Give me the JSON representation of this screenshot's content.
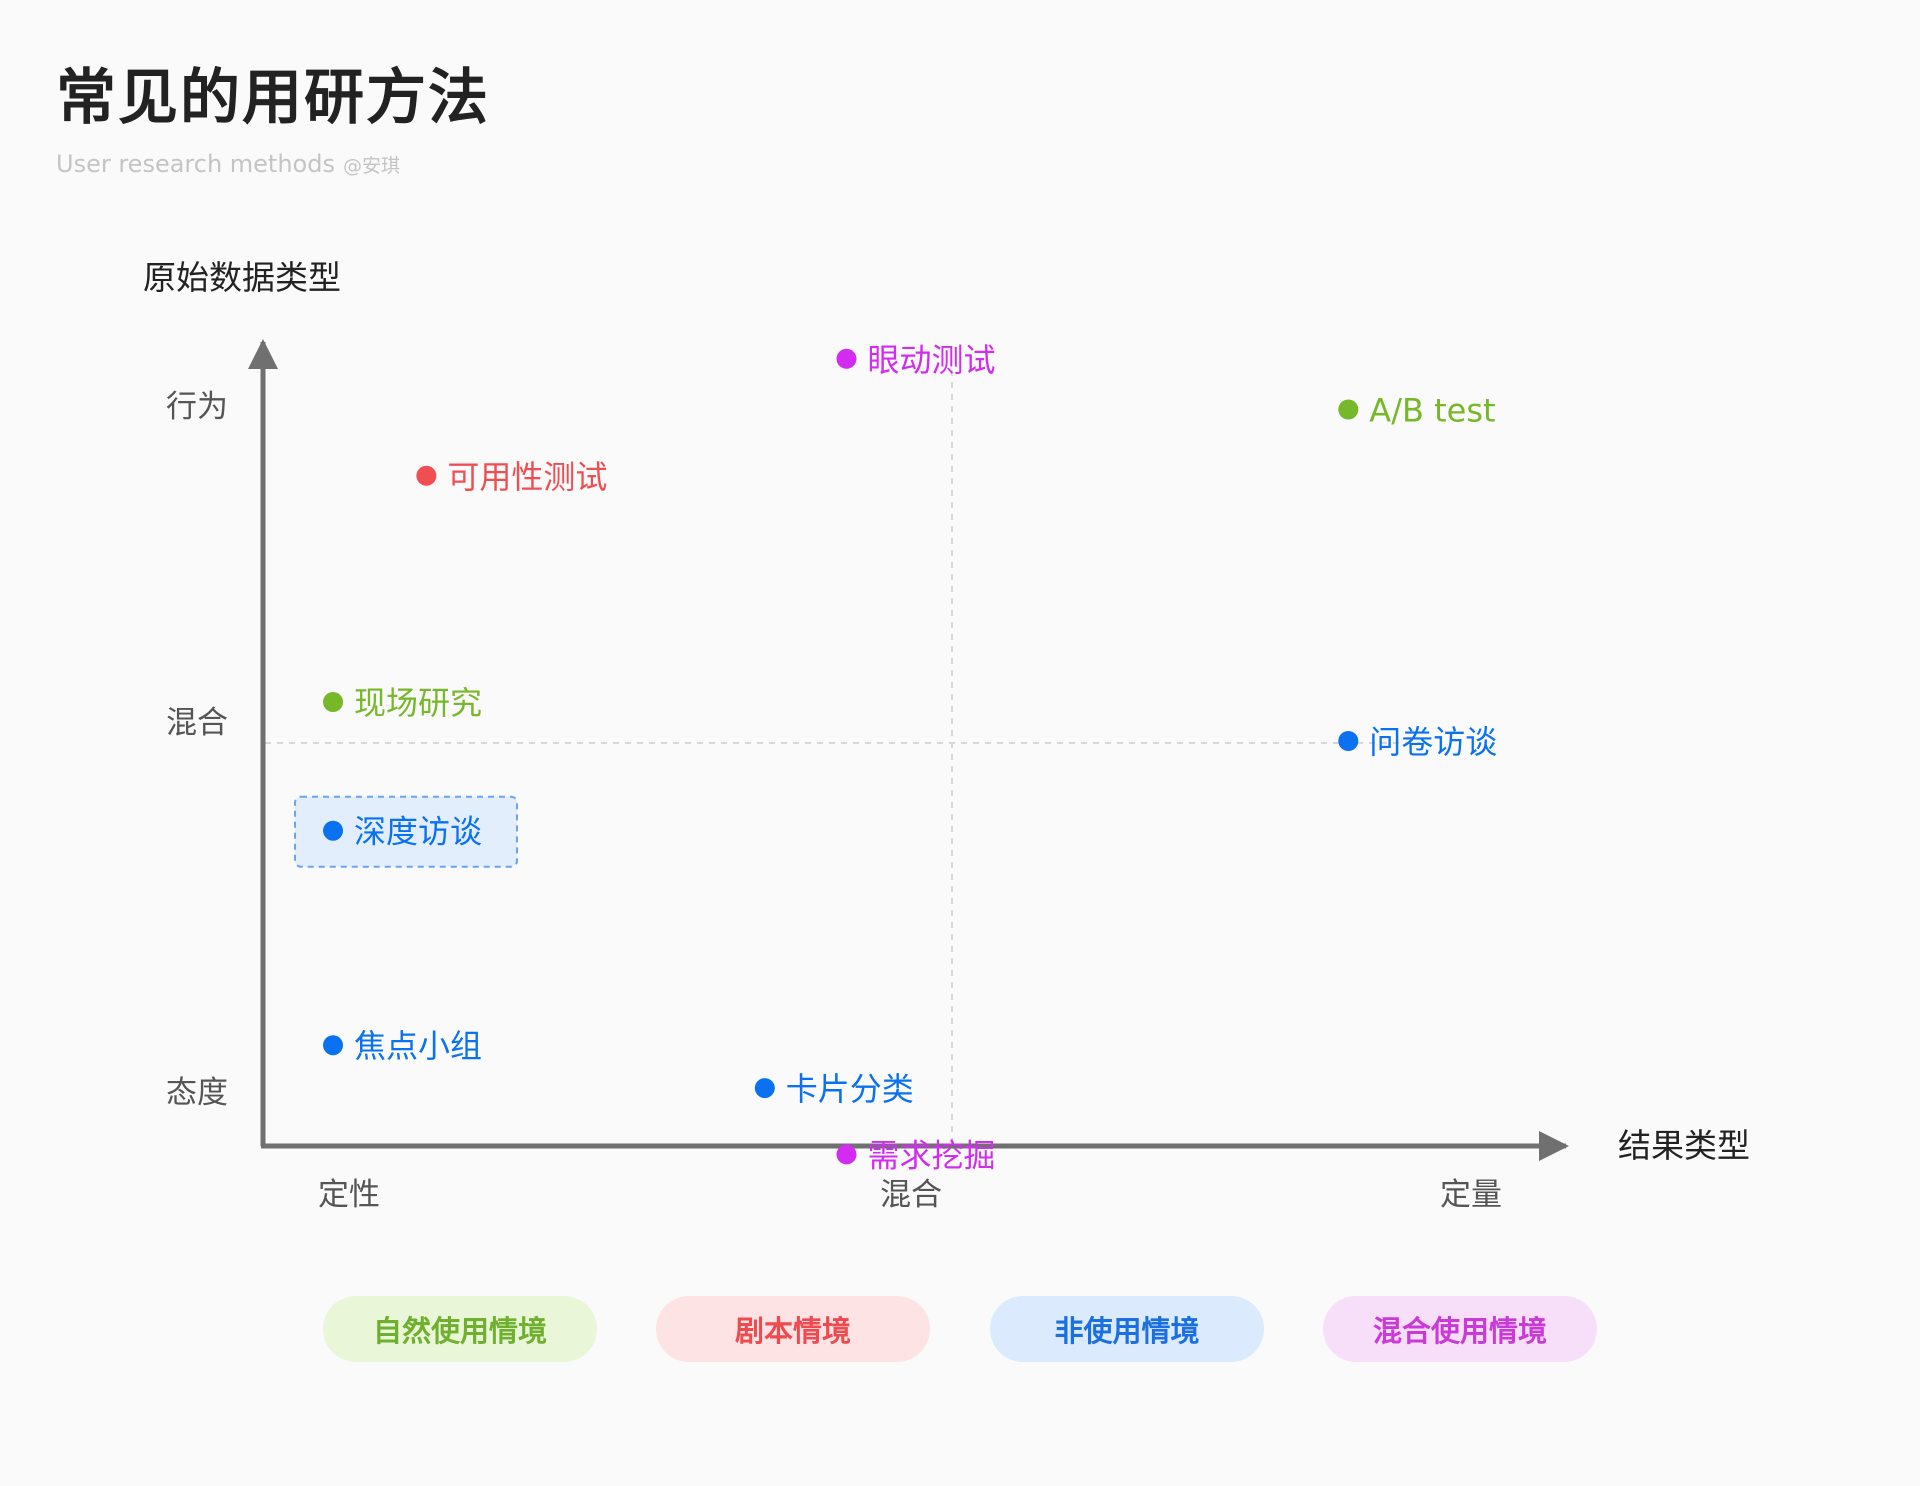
{
  "header": {
    "title": "常见的用研方法",
    "subtitle": "User research methods",
    "author": "@安琪"
  },
  "colors": {
    "natural": "#76b82a",
    "scripted": "#f04e52",
    "nonuse": "#0a72f0",
    "mixed": "#d22cf0",
    "axis": "#707070"
  },
  "legend": [
    {
      "key": "natural",
      "label": "自然使用情境"
    },
    {
      "key": "scripted",
      "label": "剧本情境"
    },
    {
      "key": "nonuse",
      "label": "非使用情境"
    },
    {
      "key": "mixed",
      "label": "混合使用情境"
    }
  ],
  "chart_data": {
    "type": "scatter",
    "ylabel": "原始数据类型",
    "xlabel": "结果类型",
    "x_ticks": [
      "定性",
      "混合",
      "定量"
    ],
    "y_ticks": [
      "态度",
      "混合",
      "行为"
    ],
    "x_range": [
      0,
      2
    ],
    "y_range": [
      0,
      2
    ],
    "midlines": true,
    "points": [
      {
        "label": "眼动测试",
        "x": 1.0,
        "y": 1.98,
        "category": "mixed"
      },
      {
        "label": "A/B test",
        "x": 1.86,
        "y": 1.85,
        "category": "natural"
      },
      {
        "label": "可用性测试",
        "x": 0.28,
        "y": 1.68,
        "category": "scripted"
      },
      {
        "label": "现场研究",
        "x": 0.12,
        "y": 1.1,
        "category": "natural"
      },
      {
        "label": "问卷访谈",
        "x": 1.86,
        "y": 1.0,
        "category": "nonuse"
      },
      {
        "label": "深度访谈",
        "x": 0.12,
        "y": 0.77,
        "category": "nonuse",
        "highlighted": true
      },
      {
        "label": "焦点小组",
        "x": 0.12,
        "y": 0.22,
        "category": "nonuse"
      },
      {
        "label": "卡片分类",
        "x": 0.86,
        "y": 0.11,
        "category": "nonuse"
      },
      {
        "label": "需求挖掘",
        "x": 1.0,
        "y": -0.06,
        "category": "mixed"
      }
    ]
  }
}
